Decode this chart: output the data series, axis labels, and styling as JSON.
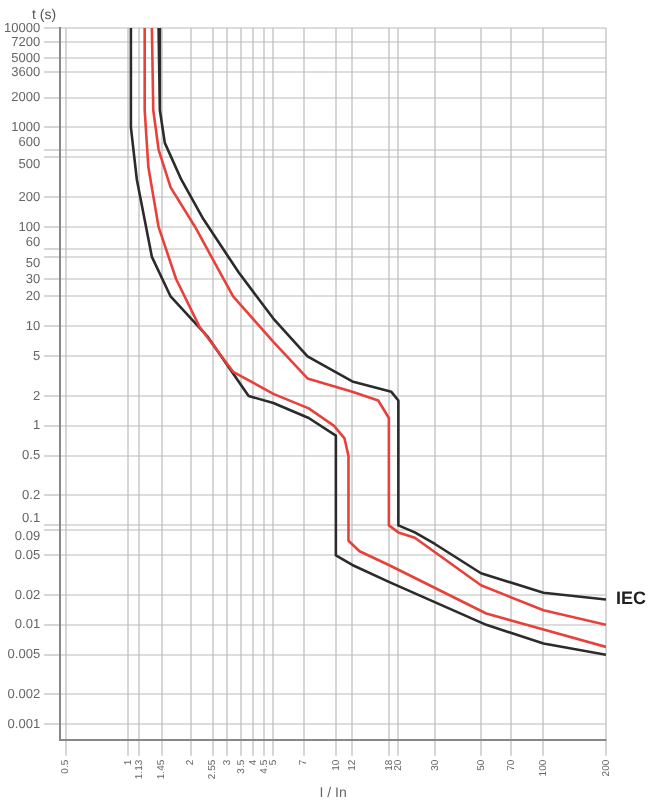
{
  "chart_data": {
    "type": "line",
    "xlabel": "I / In",
    "ylabel": "t (s)",
    "log": "xy",
    "grid": true,
    "legend": false,
    "marker": "none",
    "line_style": "solid",
    "xlim": [
      0.47,
      200
    ],
    "ylim": [
      0.0007,
      10000
    ],
    "xticks": [
      0.5,
      1,
      1.13,
      1.45,
      2,
      2.55,
      3,
      3.5,
      4,
      4.5,
      5,
      7,
      10,
      12,
      18,
      20,
      30,
      50,
      70,
      100,
      200
    ],
    "yticks": [
      0.001,
      0.002,
      0.005,
      0.01,
      0.02,
      0.05,
      0.09,
      0.1,
      0.2,
      0.5,
      1,
      2,
      5,
      10,
      20,
      30,
      50,
      60,
      100,
      200,
      500,
      600,
      1000,
      2000,
      3600,
      5000,
      7200,
      10000
    ],
    "series": [
      {
        "name": "IEC",
        "color": "#2b2b2b",
        "x": [
          1.4,
          1.42,
          1.5,
          1.8,
          2.3,
          3.4,
          5,
          7.3,
          12,
          18.5,
          20,
          20,
          24,
          30,
          50,
          100,
          200
        ],
        "values": [
          10000,
          1500,
          700,
          300,
          120,
          35,
          12,
          5,
          2.8,
          2.2,
          1.8,
          0.1,
          0.085,
          0.065,
          0.033,
          0.021,
          0.018
        ]
      },
      {
        "color": "#e8413a",
        "x": [
          1.3,
          1.32,
          1.4,
          1.6,
          2.1,
          3.2,
          5,
          7.3,
          12,
          16,
          18,
          18,
          20,
          24,
          50,
          100,
          200
        ],
        "values": [
          10000,
          1500,
          600,
          250,
          100,
          20,
          7,
          3,
          2.2,
          1.8,
          1.2,
          0.1,
          0.085,
          0.075,
          0.025,
          0.014,
          0.01
        ]
      },
      {
        "color": "#e8413a",
        "x": [
          1.2,
          1.2,
          1.25,
          1.4,
          1.7,
          2.2,
          3.2,
          5,
          7.4,
          9.8,
          11,
          11.5,
          11.5,
          13,
          18,
          53,
          100,
          200
        ],
        "values": [
          10000,
          1500,
          400,
          100,
          30,
          10,
          3.5,
          2.1,
          1.5,
          1,
          0.75,
          0.5,
          0.07,
          0.055,
          0.04,
          0.013,
          0.009,
          0.006
        ]
      },
      {
        "color": "#2b2b2b",
        "x": [
          1.03,
          1.03,
          1.1,
          1.3,
          1.6,
          2.4,
          3.8,
          5,
          7.4,
          10,
          10,
          12,
          18,
          53,
          100,
          200
        ],
        "values": [
          10000,
          1000,
          300,
          50,
          20,
          8,
          2,
          1.7,
          1.2,
          0.8,
          0.05,
          0.04,
          0.027,
          0.01,
          0.0065,
          0.005
        ]
      }
    ]
  }
}
